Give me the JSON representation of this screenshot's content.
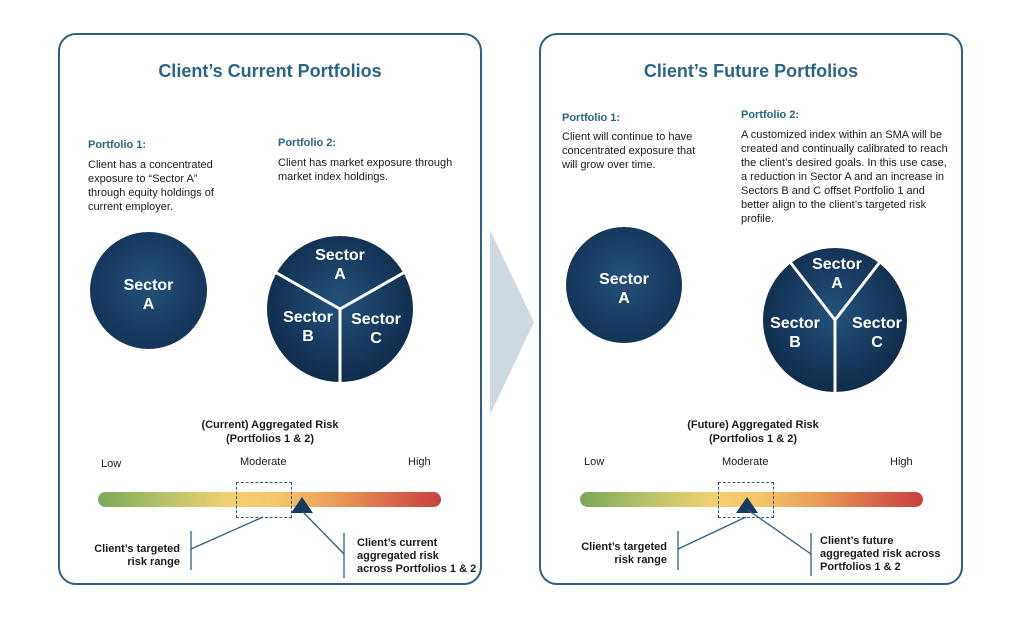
{
  "current": {
    "title": "Client’s Current Portfolios",
    "p1_heading": "Portfolio 1:",
    "p1_text": "Client has a concentrated exposure to “Sector A” through equity holdings of current employer.",
    "p2_heading": "Portfolio 2:",
    "p2_text": "Client has market exposure through market index holdings.",
    "circle_label": "Sector A",
    "pie_labels": [
      "Sector A",
      "Sector B",
      "Sector C"
    ],
    "risk_title_line1": "(Current) Aggregated Risk",
    "risk_title_line2": "(Portfolios 1  & 2)",
    "low": "Low",
    "moderate": "Moderate",
    "high": "High",
    "callout_left": "Client’s targeted risk range",
    "callout_right": "Client’s current aggregated risk across Portfolios 1 & 2"
  },
  "future": {
    "title": "Client’s Future Portfolios",
    "p1_heading": "Portfolio 1:",
    "p1_text": "Client will continue to have concentrated exposure that will grow over time.",
    "p2_heading": "Portfolio 2:",
    "p2_text": "A customized index within an SMA will be created and continually calibrated to reach the client’s desired goals. In this use case, a reduction in Sector A and an increase in Sectors B and C offset Portfolio 1 and better align to the client’s targeted risk profile.",
    "circle_label": "Sector A",
    "pie_labels": [
      "Sector A",
      "Sector B",
      "Sector C"
    ],
    "risk_title_line1": "(Future) Aggregated Risk",
    "risk_title_line2": "(Portfolios 1  & 2)",
    "low": "Low",
    "moderate": "Moderate",
    "high": "High",
    "callout_left": "Client’s targeted risk range",
    "callout_right": "Client’s future aggregated risk across Portfolios 1 & 2"
  },
  "colors": {
    "panel_border": "#2e5f86",
    "title": "#2a6588",
    "circle": "#173b60",
    "arrow": "#cfd9e2"
  }
}
